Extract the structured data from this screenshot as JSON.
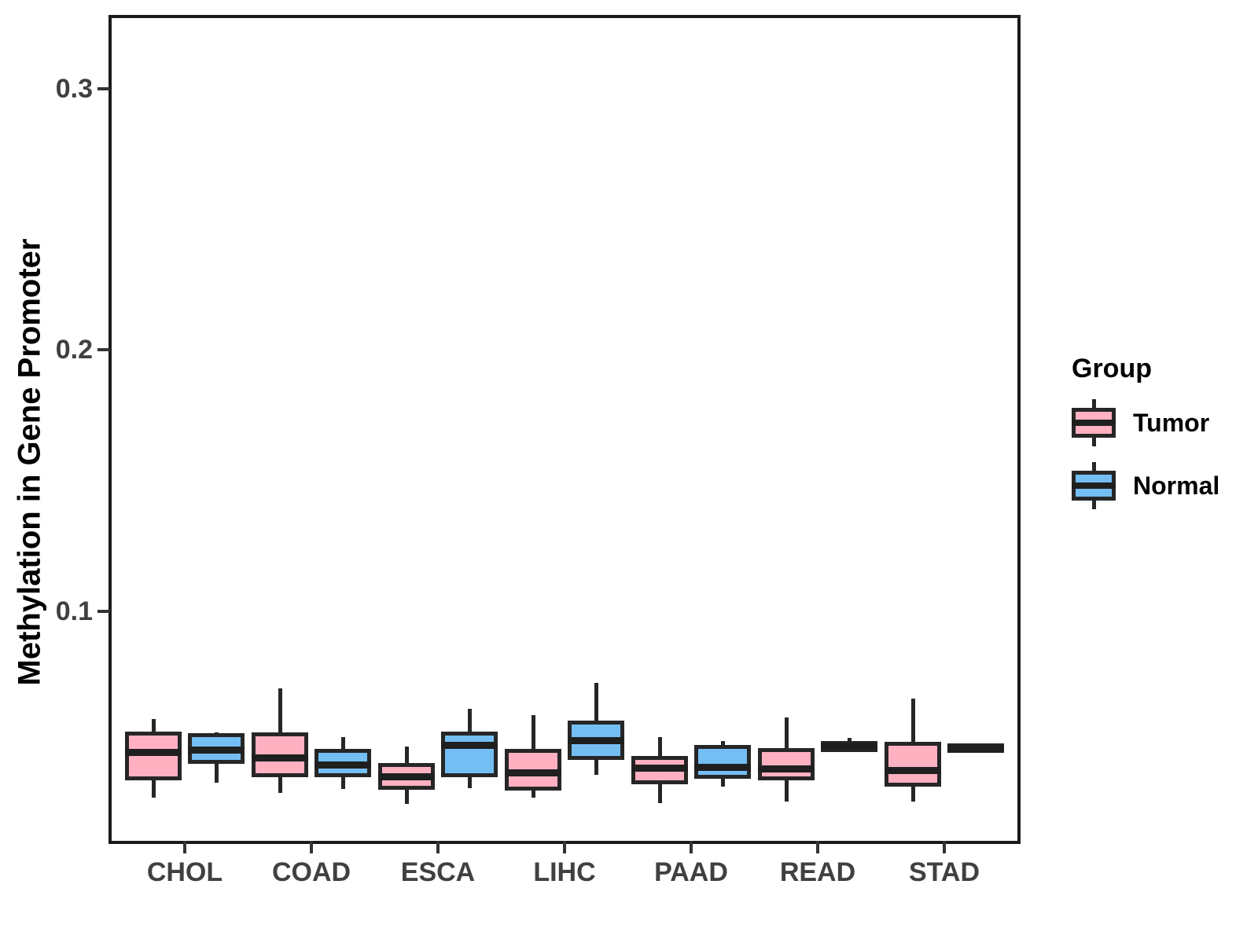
{
  "figure": {
    "background": "#ffffff",
    "panel_border_color": "#1a1a1a",
    "axis_text_color": "#404040",
    "box_stroke_color": "#262626",
    "median_color": "#1f1f1f"
  },
  "legend": {
    "title": "Group",
    "position": "right",
    "items": [
      {
        "label": "Tumor",
        "color": "#FFB1C2"
      },
      {
        "label": "Normal",
        "color": "#74BEF4"
      }
    ]
  },
  "chart_data": {
    "type": "boxplot",
    "title": "",
    "xlabel": "",
    "ylabel": "Methylation in Gene Promoter",
    "grid": "off",
    "legend_position": "right",
    "legend_title": "Group",
    "categories": [
      "CHOL",
      "COAD",
      "ESCA",
      "LIHC",
      "PAAD",
      "READ",
      "STAD"
    ],
    "ylim": [
      0.012,
      0.327
    ],
    "yticks": [
      {
        "value": 0.1,
        "label": "0.1"
      },
      {
        "value": 0.2,
        "label": "0.2"
      },
      {
        "value": 0.3,
        "label": "0.3"
      }
    ],
    "series": [
      {
        "name": "Tumor",
        "fill": "#FFB1C2",
        "boxes": [
          {
            "category": "CHOL",
            "low": 0.0285,
            "q1": 0.0368,
            "median": 0.0458,
            "q3": 0.0523,
            "high": 0.0585
          },
          {
            "category": "COAD",
            "low": 0.0302,
            "q1": 0.038,
            "median": 0.0436,
            "q3": 0.0519,
            "high": 0.0705
          },
          {
            "category": "ESCA",
            "low": 0.026,
            "q1": 0.0332,
            "median": 0.0366,
            "q3": 0.0402,
            "high": 0.048
          },
          {
            "category": "LIHC",
            "low": 0.0284,
            "q1": 0.0329,
            "median": 0.038,
            "q3": 0.0456,
            "high": 0.06
          },
          {
            "category": "PAAD",
            "low": 0.0263,
            "q1": 0.0353,
            "median": 0.0399,
            "q3": 0.0429,
            "high": 0.0516
          },
          {
            "category": "READ",
            "low": 0.0269,
            "q1": 0.0368,
            "median": 0.0395,
            "q3": 0.0459,
            "high": 0.0591
          },
          {
            "category": "STAD",
            "low": 0.0269,
            "q1": 0.0344,
            "median": 0.0389,
            "q3": 0.0483,
            "high": 0.0666
          }
        ]
      },
      {
        "name": "Normal",
        "fill": "#74BEF4",
        "boxes": [
          {
            "category": "CHOL",
            "low": 0.0344,
            "q1": 0.0429,
            "median": 0.0468,
            "q3": 0.0516,
            "high": 0.0534
          },
          {
            "category": "COAD",
            "low": 0.032,
            "q1": 0.038,
            "median": 0.0411,
            "q3": 0.0456,
            "high": 0.0516
          },
          {
            "category": "ESCA",
            "low": 0.0323,
            "q1": 0.038,
            "median": 0.0486,
            "q3": 0.0522,
            "high": 0.0624
          },
          {
            "category": "LIHC",
            "low": 0.0374,
            "q1": 0.0444,
            "median": 0.0504,
            "q3": 0.0564,
            "high": 0.0726
          },
          {
            "category": "PAAD",
            "low": 0.0329,
            "q1": 0.0372,
            "median": 0.0402,
            "q3": 0.0471,
            "high": 0.0501
          },
          {
            "category": "READ",
            "low": 0.0472,
            "q1": 0.0476,
            "median": 0.0482,
            "q3": 0.0488,
            "high": 0.0515
          },
          {
            "category": "STAD",
            "low": 0.047,
            "q1": 0.0472,
            "median": 0.0475,
            "q3": 0.0478,
            "high": 0.048
          }
        ]
      }
    ]
  }
}
